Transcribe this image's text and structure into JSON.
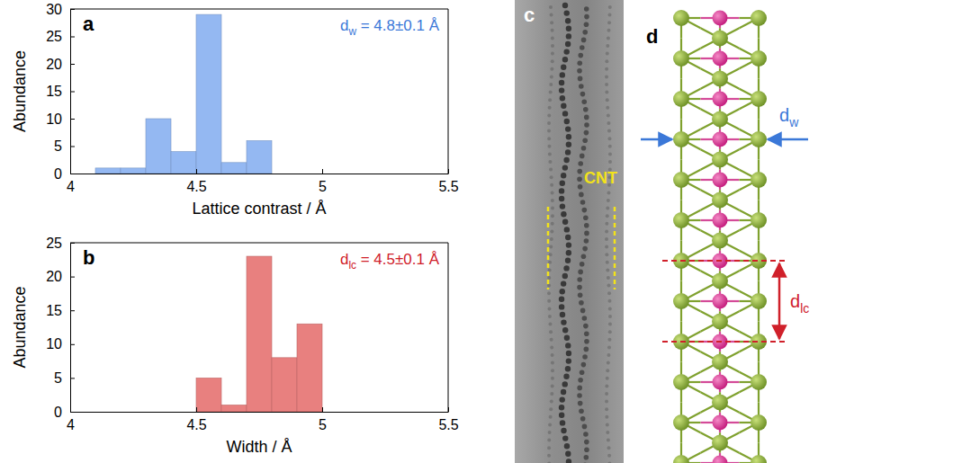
{
  "chart_data": [
    {
      "type": "histogram",
      "title": "a",
      "x_label": "Lattice contrast / Å",
      "y_label": "Abundance",
      "bins": [
        4.1,
        4.2,
        4.3,
        4.4,
        4.5,
        4.6,
        4.7,
        4.8
      ],
      "values": [
        1,
        1,
        10,
        4,
        29,
        2,
        6
      ],
      "color": "#94b8f2",
      "xlim": [
        4,
        5.5
      ],
      "xticks": [
        4,
        4.5,
        5,
        5.5
      ],
      "ylim": [
        0,
        30
      ],
      "yticks": [
        0,
        5,
        10,
        15,
        20,
        25,
        30
      ],
      "annotations": [
        {
          "symbol": "d",
          "subscript": "w",
          "text": " = 4.8±0.1 Å",
          "color": "#3b78d8"
        }
      ]
    },
    {
      "type": "histogram",
      "title": "b",
      "x_label": "Width / Å",
      "y_label": "Abundance",
      "bins": [
        4.5,
        4.6,
        4.7,
        4.8,
        4.9,
        5.0
      ],
      "values": [
        5,
        1,
        23,
        8,
        13
      ],
      "color": "#e8807f",
      "xlim": [
        4,
        5.5
      ],
      "xticks": [
        4,
        4.5,
        5,
        5.5
      ],
      "ylim": [
        0,
        25
      ],
      "yticks": [
        0,
        5,
        10,
        15,
        20,
        25
      ],
      "annotations": [
        {
          "symbol": "d",
          "subscript": "lc",
          "text": " = 4.5±0.1 Å",
          "color": "#d0202a"
        }
      ]
    }
  ],
  "image_panel": {
    "letter": "c",
    "label": "CNT"
  },
  "structure_panel": {
    "letter": "d",
    "width_label": {
      "symbol": "d",
      "subscript": "w"
    },
    "period_label": {
      "symbol": "d",
      "subscript": "lc"
    }
  }
}
